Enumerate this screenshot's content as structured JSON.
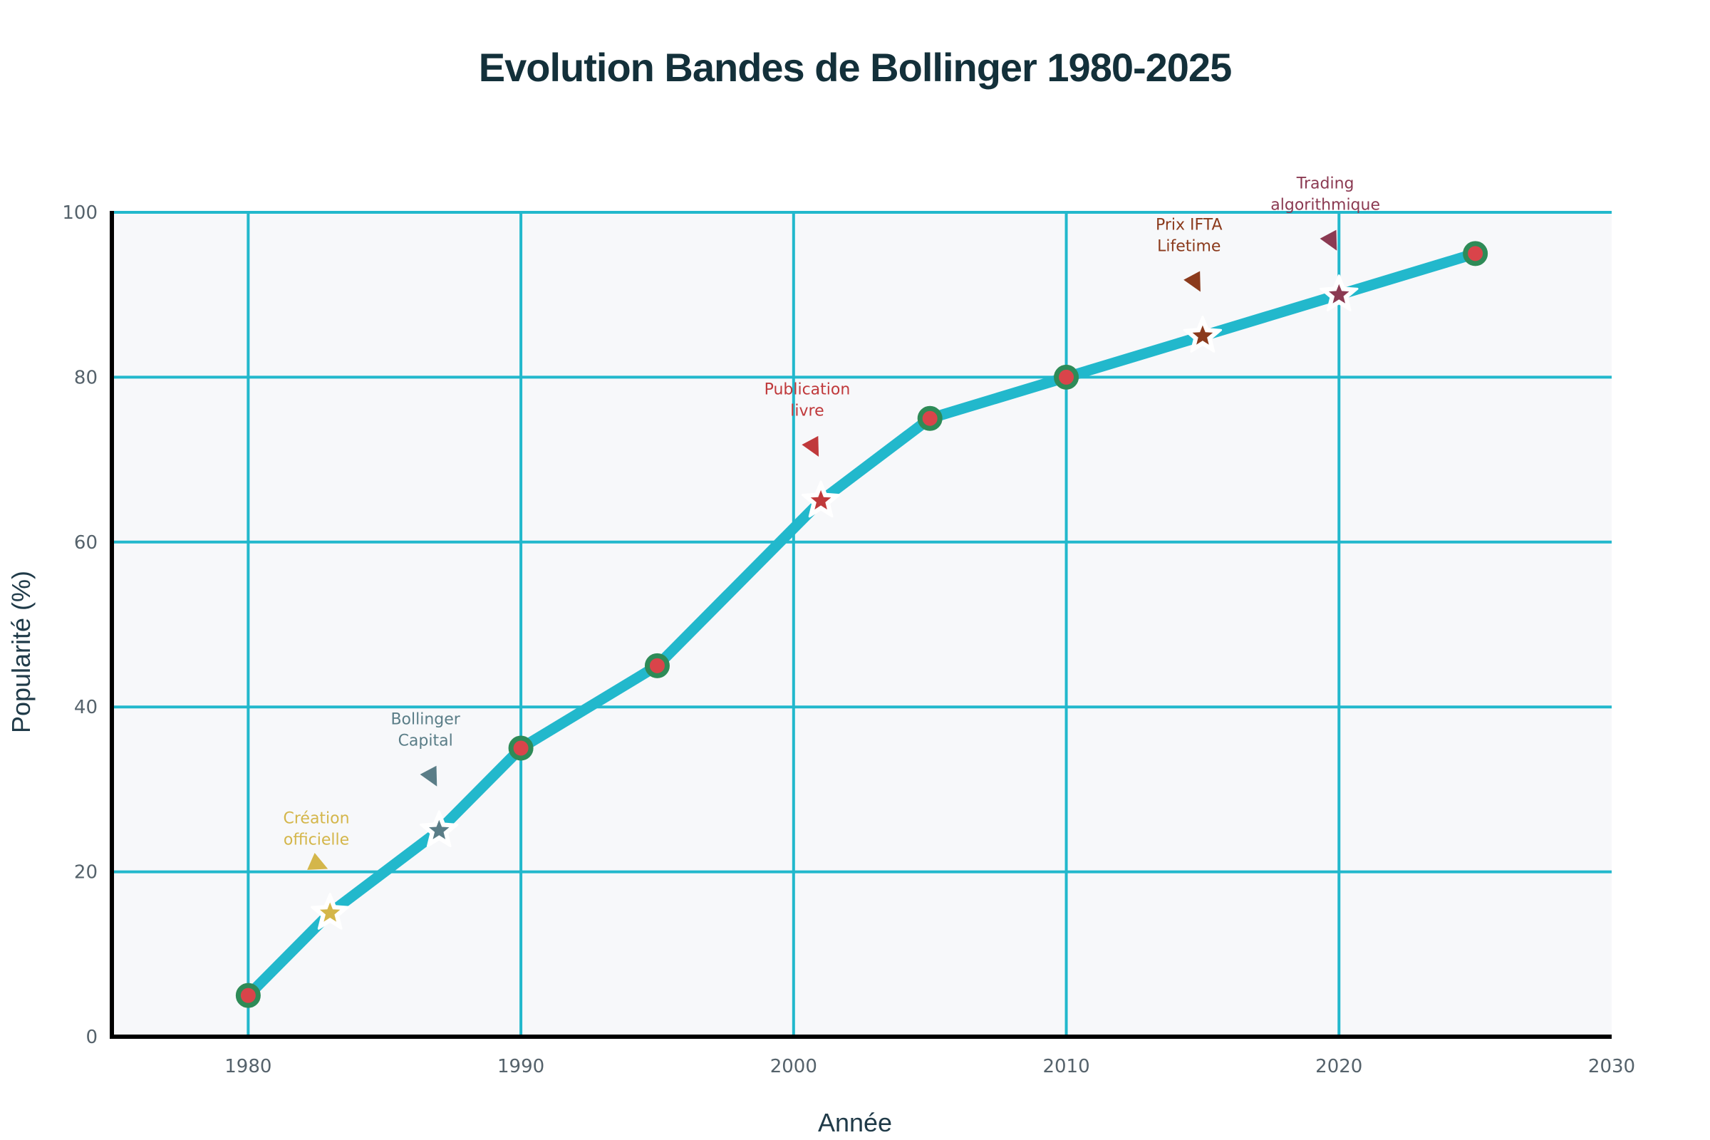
{
  "chart_data": {
    "type": "line",
    "title": "Evolution Bandes de Bollinger 1980-2025",
    "xlabel": "Année",
    "ylabel": "Popularité (%)",
    "xlim": [
      1975,
      2030
    ],
    "ylim": [
      0,
      100
    ],
    "x_ticks": [
      1980,
      1990,
      2000,
      2010,
      2020,
      2030
    ],
    "y_ticks": [
      0,
      20,
      40,
      60,
      80,
      100
    ],
    "grid": true,
    "series": [
      {
        "x": [
          1980,
          1983,
          1987,
          1990,
          1995,
          2001,
          2005,
          2010,
          2015,
          2020,
          2025
        ],
        "y": [
          5,
          15,
          25,
          35,
          45,
          65,
          75,
          80,
          85,
          90,
          95
        ]
      }
    ],
    "milestones": [
      {
        "x": 1983,
        "y": 15,
        "label": [
          "Création",
          "officielle"
        ],
        "color": "#d4b64a",
        "text_x": 1982.5,
        "text_y": 24
      },
      {
        "x": 1987,
        "y": 25,
        "label": [
          "Bollinger",
          "Capital"
        ],
        "color": "#5a7d87",
        "text_x": 1986.5,
        "text_y": 36
      },
      {
        "x": 2001,
        "y": 65,
        "label": [
          "Publication",
          "livre"
        ],
        "color": "#c0393b",
        "text_x": 2000.5,
        "text_y": 76
      },
      {
        "x": 2015,
        "y": 85,
        "label": [
          "Prix IFTA",
          "Lifetime"
        ],
        "color": "#8b3a1c",
        "text_x": 2014.5,
        "text_y": 96
      },
      {
        "x": 2020,
        "y": 90,
        "label": [
          "Trading",
          "algorithmique"
        ],
        "color": "#8b3a52",
        "text_x": 2019.5,
        "text_y": 101
      }
    ],
    "colors": {
      "line": "#22b8cc",
      "grid": "#22b8cc",
      "marker_fill": "#d9444a",
      "marker_edge": "#2e8b57",
      "plot_background": "#f7f8fa",
      "axis": "#000000"
    }
  }
}
